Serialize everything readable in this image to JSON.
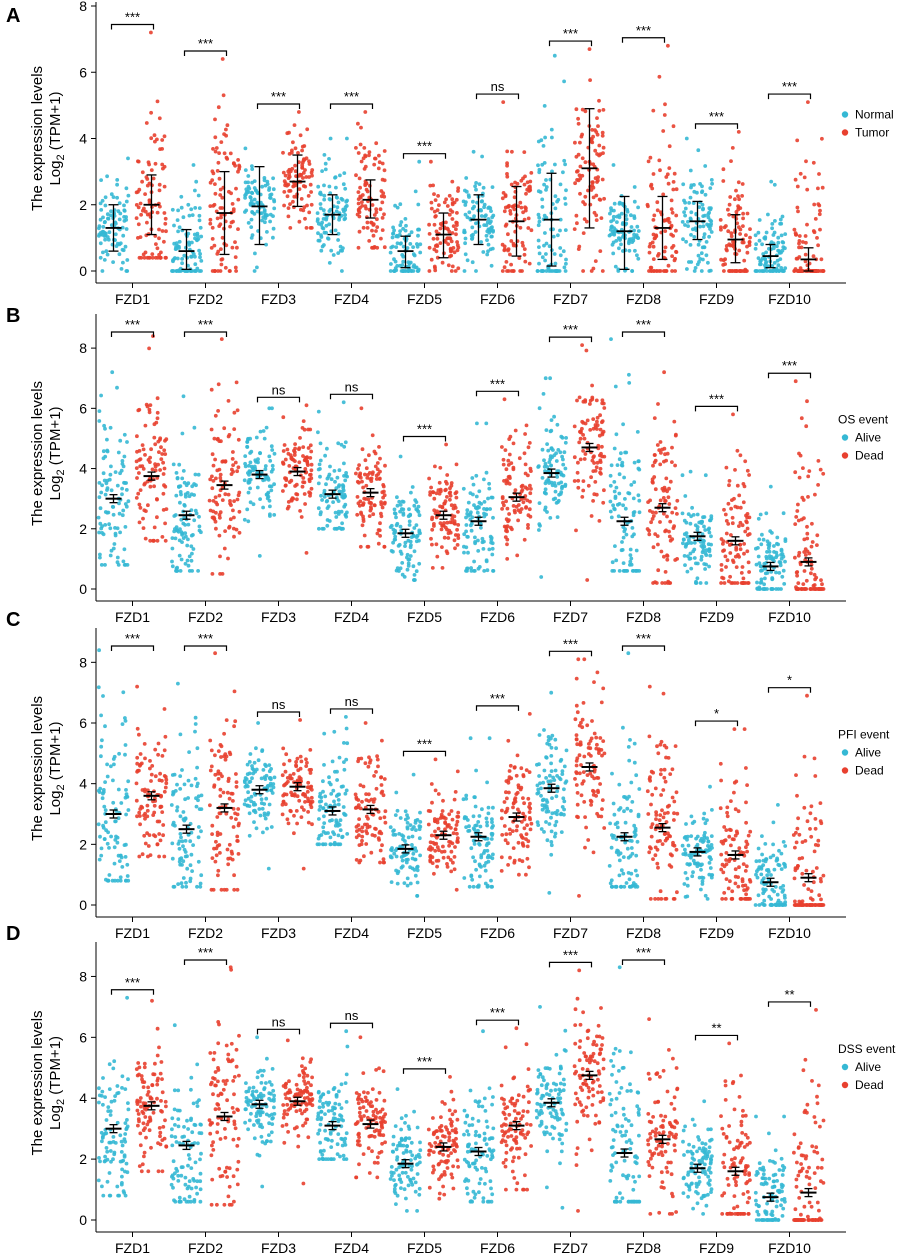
{
  "figure": {
    "colors": {
      "normal": "#35B8D4",
      "tumor": "#E8402F",
      "alive": "#35B8D4",
      "dead": "#E8402F",
      "ink": "#000000"
    },
    "categories": [
      "FZD1",
      "FZD2",
      "FZD3",
      "FZD4",
      "FZD5",
      "FZD6",
      "FZD7",
      "FZD8",
      "FZD9",
      "FZD10"
    ]
  },
  "chart_data": [
    {
      "type": "scatter",
      "panel_label": "A",
      "ylabel_line1": "The expression levels",
      "ylabel_line2_pre": "Log",
      "ylabel_line2_sub": "2",
      "ylabel_line2_post": " (TPM+1)",
      "ylim": [
        0,
        8
      ],
      "yticks": [
        0,
        2,
        4,
        6,
        8
      ],
      "error_style": "sd",
      "legend_title": "",
      "legend": [
        "Normal",
        "Tumor"
      ],
      "categories": [
        "FZD1",
        "FZD2",
        "FZD3",
        "FZD4",
        "FZD5",
        "FZD6",
        "FZD7",
        "FZD8",
        "FZD9",
        "FZD10"
      ],
      "significance": [
        "***",
        "***",
        "***",
        "***",
        "***",
        "ns",
        "***",
        "***",
        "***",
        "***"
      ],
      "series": [
        {
          "name": "Normal",
          "mean": [
            1.3,
            0.6,
            1.95,
            1.7,
            0.6,
            1.55,
            1.55,
            1.2,
            1.5,
            0.45
          ],
          "lo": [
            0.6,
            0.05,
            0.8,
            1.1,
            0.1,
            0.8,
            0.15,
            0.05,
            0.95,
            0.1
          ],
          "hi": [
            2.0,
            1.25,
            3.15,
            2.3,
            1.05,
            2.3,
            2.95,
            2.25,
            2.1,
            0.8
          ],
          "max": [
            3.4,
            3.2,
            3.7,
            4.0,
            3.3,
            3.6,
            6.5,
            3.2,
            4.0,
            2.7
          ],
          "min": [
            0.0,
            0.0,
            0.0,
            0.0,
            0.0,
            0.0,
            0.0,
            0.0,
            0.0,
            0.0
          ]
        },
        {
          "name": "Tumor",
          "mean": [
            2.0,
            1.75,
            2.7,
            2.15,
            1.1,
            1.5,
            3.1,
            1.3,
            0.95,
            0.35
          ],
          "lo": [
            1.1,
            0.5,
            1.95,
            1.6,
            0.4,
            0.45,
            1.3,
            0.35,
            0.25,
            0.0
          ],
          "hi": [
            2.9,
            3.0,
            3.5,
            2.75,
            1.75,
            2.55,
            4.9,
            2.25,
            1.7,
            0.7
          ],
          "max": [
            7.2,
            6.4,
            4.8,
            4.8,
            3.3,
            5.1,
            6.7,
            6.8,
            4.2,
            5.1
          ],
          "min": [
            0.4,
            0.0,
            1.3,
            0.7,
            0.0,
            0.0,
            0.0,
            0.0,
            0.0,
            0.0
          ]
        }
      ]
    },
    {
      "type": "scatter",
      "panel_label": "B",
      "ylabel_line1": "The expression levels",
      "ylabel_line2_pre": "Log",
      "ylabel_line2_sub": "2",
      "ylabel_line2_post": " (TPM+1)",
      "ylim": [
        0,
        9
      ],
      "yticks": [
        0,
        2,
        4,
        6,
        8
      ],
      "error_style": "sem",
      "legend_title": "OS event",
      "legend": [
        "Alive",
        "Dead"
      ],
      "categories": [
        "FZD1",
        "FZD2",
        "FZD3",
        "FZD4",
        "FZD5",
        "FZD6",
        "FZD7",
        "FZD8",
        "FZD9",
        "FZD10"
      ],
      "significance": [
        "***",
        "***",
        "ns",
        "ns",
        "***",
        "***",
        "***",
        "***",
        "***",
        "***"
      ],
      "series": [
        {
          "name": "Alive",
          "mean": [
            3.0,
            2.45,
            3.8,
            3.15,
            1.85,
            2.25,
            3.85,
            2.25,
            1.75,
            0.75
          ],
          "max": [
            7.2,
            6.4,
            6.0,
            6.2,
            4.4,
            5.5,
            7.0,
            8.3,
            3.9,
            3.4
          ],
          "min": [
            0.8,
            0.6,
            1.1,
            2.0,
            0.3,
            0.6,
            0.4,
            0.6,
            0.2,
            0.0
          ]
        },
        {
          "name": "Dead",
          "mean": [
            3.75,
            3.45,
            3.9,
            3.2,
            2.45,
            3.05,
            4.7,
            2.7,
            1.6,
            0.9
          ],
          "max": [
            8.4,
            8.3,
            6.1,
            6.0,
            4.8,
            6.3,
            8.1,
            7.2,
            5.8,
            6.9
          ],
          "min": [
            1.6,
            0.5,
            1.2,
            1.4,
            0.7,
            1.0,
            0.3,
            0.2,
            0.2,
            0.0
          ]
        }
      ]
    },
    {
      "type": "scatter",
      "panel_label": "C",
      "ylabel_line1": "The expression levels",
      "ylabel_line2_pre": "Log",
      "ylabel_line2_sub": "2",
      "ylabel_line2_post": " (TPM+1)",
      "ylim": [
        0,
        9
      ],
      "yticks": [
        0,
        2,
        4,
        6,
        8
      ],
      "error_style": "sem",
      "legend_title": "PFI event",
      "legend": [
        "Alive",
        "Dead"
      ],
      "categories": [
        "FZD1",
        "FZD2",
        "FZD3",
        "FZD4",
        "FZD5",
        "FZD6",
        "FZD7",
        "FZD8",
        "FZD9",
        "FZD10"
      ],
      "significance": [
        "***",
        "***",
        "ns",
        "ns",
        "***",
        "***",
        "***",
        "***",
        "*",
        "*"
      ],
      "series": [
        {
          "name": "Alive",
          "mean": [
            3.0,
            2.5,
            3.8,
            3.1,
            1.85,
            2.25,
            3.85,
            2.25,
            1.75,
            0.75
          ],
          "max": [
            8.4,
            7.3,
            6.0,
            6.2,
            4.3,
            5.5,
            7.0,
            8.3,
            3.9,
            3.3
          ],
          "min": [
            0.8,
            0.6,
            1.2,
            2.0,
            0.3,
            0.6,
            0.4,
            0.6,
            0.2,
            0.0
          ]
        },
        {
          "name": "Dead",
          "mean": [
            3.6,
            3.2,
            3.9,
            3.15,
            2.3,
            2.9,
            4.55,
            2.55,
            1.65,
            0.9
          ],
          "max": [
            7.2,
            8.3,
            6.1,
            6.0,
            4.8,
            6.3,
            8.1,
            7.2,
            5.8,
            6.9
          ],
          "min": [
            1.6,
            0.5,
            1.2,
            1.4,
            0.5,
            1.0,
            0.3,
            0.2,
            0.2,
            0.0
          ]
        }
      ]
    },
    {
      "type": "scatter",
      "panel_label": "D",
      "ylabel_line1": "The expression levels",
      "ylabel_line2_pre": "Log",
      "ylabel_line2_sub": "2",
      "ylabel_line2_post": " (TPM+1)",
      "ylim": [
        0,
        9
      ],
      "yticks": [
        0,
        2,
        4,
        6,
        8
      ],
      "error_style": "sem",
      "legend_title": "DSS event",
      "legend": [
        "Alive",
        "Dead"
      ],
      "categories": [
        "FZD1",
        "FZD2",
        "FZD3",
        "FZD4",
        "FZD5",
        "FZD6",
        "FZD7",
        "FZD8",
        "FZD9",
        "FZD10"
      ],
      "significance": [
        "***",
        "***",
        "ns",
        "ns",
        "***",
        "***",
        "***",
        "***",
        "**",
        "**"
      ],
      "series": [
        {
          "name": "Alive",
          "mean": [
            3.0,
            2.45,
            3.8,
            3.1,
            1.85,
            2.25,
            3.85,
            2.2,
            1.7,
            0.75
          ],
          "max": [
            7.3,
            6.4,
            6.0,
            6.2,
            4.3,
            6.2,
            7.0,
            8.3,
            3.9,
            3.4
          ],
          "min": [
            0.8,
            0.6,
            1.1,
            2.0,
            0.3,
            0.6,
            0.4,
            0.6,
            0.2,
            0.0
          ]
        },
        {
          "name": "Dead",
          "mean": [
            3.75,
            3.4,
            3.9,
            3.15,
            2.4,
            3.1,
            4.75,
            2.65,
            1.6,
            0.9
          ],
          "max": [
            7.2,
            8.3,
            5.9,
            6.0,
            4.7,
            6.3,
            8.2,
            6.6,
            5.8,
            6.9
          ],
          "min": [
            1.6,
            0.5,
            1.2,
            1.4,
            0.7,
            1.0,
            0.3,
            0.2,
            0.2,
            0.0
          ]
        }
      ]
    }
  ]
}
